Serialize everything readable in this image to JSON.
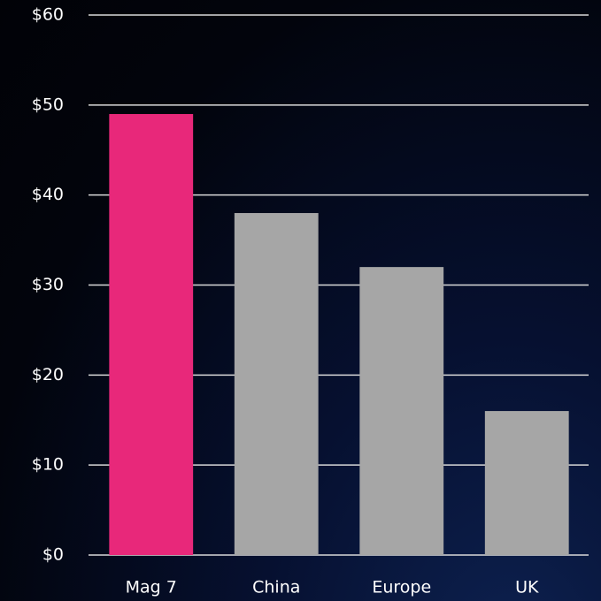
{
  "chart_data": {
    "type": "bar",
    "categories": [
      "Mag 7",
      "China",
      "Europe",
      "UK"
    ],
    "values": [
      49,
      38,
      32,
      16
    ],
    "colors": [
      "#e8287a",
      "#a6a6a6",
      "#a6a6a6",
      "#a6a6a6"
    ],
    "ylim": [
      0,
      60
    ],
    "yticks": [
      {
        "value": 0,
        "label": "$0"
      },
      {
        "value": 10,
        "label": "$10"
      },
      {
        "value": 20,
        "label": "$20"
      },
      {
        "value": 30,
        "label": "$30"
      },
      {
        "value": 40,
        "label": "$40"
      },
      {
        "value": 50,
        "label": "$50"
      },
      {
        "value": 60,
        "label": "$60"
      }
    ],
    "grid": true
  }
}
